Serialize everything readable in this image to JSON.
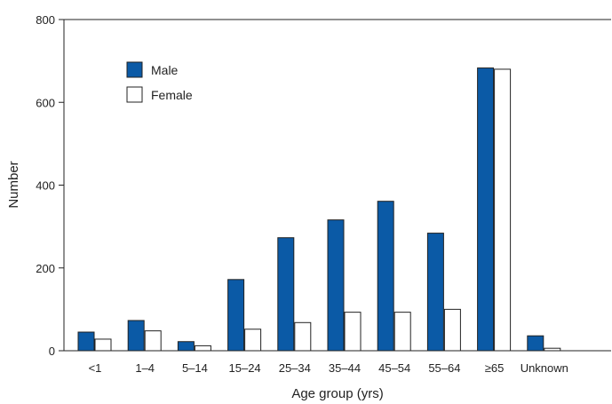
{
  "chart_data": {
    "type": "bar",
    "title": "",
    "xlabel": "Age group (yrs)",
    "ylabel": "Number",
    "ylim": [
      0,
      800
    ],
    "yticks": [
      0,
      200,
      400,
      600,
      800
    ],
    "grid": false,
    "legend_position": "top-left",
    "categories": [
      "<1",
      "1–4",
      "5–14",
      "15–24",
      "25–34",
      "35–44",
      "45–54",
      "55–64",
      "≥65",
      "Unknown"
    ],
    "series": [
      {
        "name": "Male",
        "color": "#0b5aa6",
        "values": [
          45,
          73,
          22,
          172,
          273,
          316,
          361,
          284,
          683,
          36
        ]
      },
      {
        "name": "Female",
        "color": "#ffffff",
        "values": [
          28,
          48,
          12,
          52,
          68,
          93,
          93,
          100,
          680,
          6
        ]
      }
    ]
  }
}
